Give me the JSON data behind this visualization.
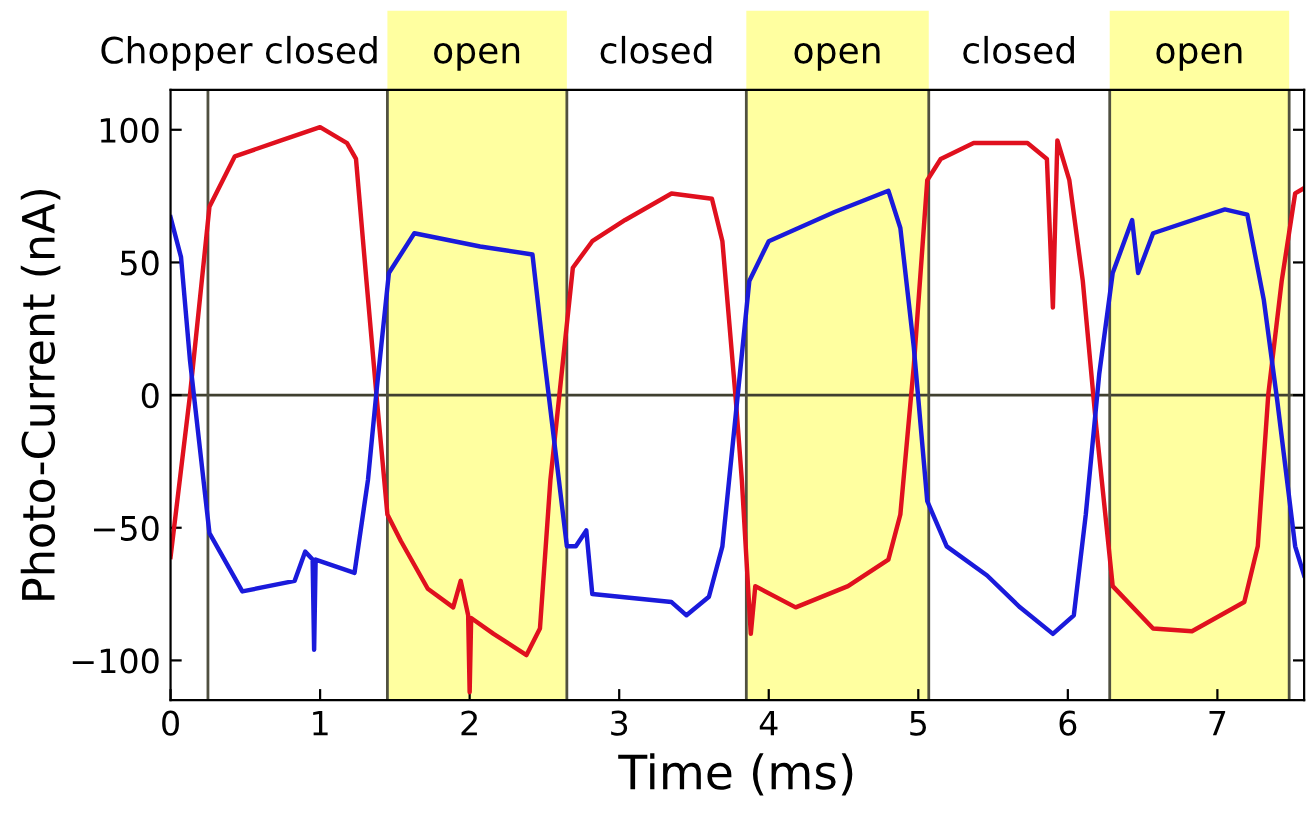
{
  "chart_data": {
    "type": "line",
    "xlabel": "Time (ms)",
    "ylabel": "Photo-Current (nA)",
    "xlim": [
      0,
      7.58
    ],
    "ylim": [
      -115,
      115
    ],
    "xticks": [
      0,
      1,
      2,
      3,
      4,
      5,
      6,
      7
    ],
    "yticks": [
      -100,
      -50,
      0,
      50,
      100
    ],
    "grid": false,
    "annotations": [
      "Chopper closed",
      "closed",
      "closed"
    ],
    "ref_lines": [
      {
        "axis": "y",
        "value": 0,
        "color": "#404030"
      },
      {
        "axis": "x",
        "value": 0.25,
        "color": "#505040"
      }
    ],
    "bands": [
      {
        "axis": "x",
        "from": 1.45,
        "to": 2.65,
        "label": "open",
        "color": "#ffffa0"
      },
      {
        "axis": "x",
        "from": 3.85,
        "to": 5.07,
        "label": "open",
        "color": "#ffffa0"
      },
      {
        "axis": "x",
        "from": 6.28,
        "to": 7.48,
        "label": "open",
        "color": "#ffffa0"
      }
    ],
    "series": [
      {
        "color": "#e0101e",
        "x": [
          0,
          0.13,
          0.26,
          0.43,
          0.74,
          1.0,
          1.18,
          1.24,
          1.31,
          1.38,
          1.45,
          1.54,
          1.72,
          1.89,
          1.94,
          1.99,
          2.0,
          2.01,
          2.16,
          2.38,
          2.47,
          2.54,
          2.6,
          2.69,
          2.82,
          3.04,
          3.35,
          3.62,
          3.69,
          3.78,
          3.82,
          3.88,
          3.91,
          4.18,
          4.53,
          4.8,
          4.88,
          4.97,
          5.06,
          5.15,
          5.37,
          5.73,
          5.86,
          5.9,
          5.93,
          6.01,
          6.1,
          6.19,
          6.3,
          6.57,
          6.83,
          7.18,
          7.27,
          7.34,
          7.43,
          7.52,
          7.58
        ],
        "values": [
          -61,
          0,
          71,
          90,
          96,
          101,
          95,
          89,
          43,
          -2,
          -45,
          -55,
          -73,
          -80,
          -70,
          -83,
          -112,
          -84,
          -90,
          -98,
          -88,
          -32,
          0,
          48,
          58,
          66,
          76,
          74,
          58,
          -2,
          -32,
          -90,
          -72,
          -80,
          -72,
          -62,
          -45,
          11,
          81,
          89,
          95,
          95,
          89,
          33,
          96,
          81,
          43,
          -12,
          -72,
          -88,
          -89,
          -78,
          -57,
          0,
          43,
          76,
          78
        ]
      },
      {
        "color": "#1a1adb",
        "x": [
          0,
          0.07,
          0.13,
          0.26,
          0.48,
          0.83,
          0.9,
          0.95,
          0.96,
          0.97,
          1.23,
          1.32,
          1.38,
          1.46,
          1.63,
          2.07,
          2.42,
          2.49,
          2.65,
          2.71,
          2.78,
          2.82,
          3.35,
          3.45,
          3.6,
          3.69,
          3.78,
          3.87,
          4.0,
          4.44,
          4.8,
          4.88,
          4.97,
          5.06,
          5.19,
          5.46,
          5.68,
          5.9,
          6.04,
          6.12,
          6.21,
          6.3,
          6.43,
          6.47,
          6.57,
          7.05,
          7.2,
          7.31,
          7.4,
          7.52,
          7.58
        ],
        "values": [
          67,
          52,
          13,
          -52,
          -74,
          -70,
          -59,
          -62,
          -96,
          -62,
          -67,
          -32,
          3,
          46,
          61,
          56,
          53,
          18,
          -57,
          -57,
          -51,
          -75,
          -78,
          -83,
          -76,
          -57,
          -7,
          43,
          58,
          69,
          77,
          63,
          18,
          -40,
          -57,
          -68,
          -80,
          -90,
          -83,
          -45,
          8,
          46,
          66,
          46,
          61,
          70,
          68,
          36,
          -2,
          -57,
          -68
        ]
      }
    ]
  }
}
